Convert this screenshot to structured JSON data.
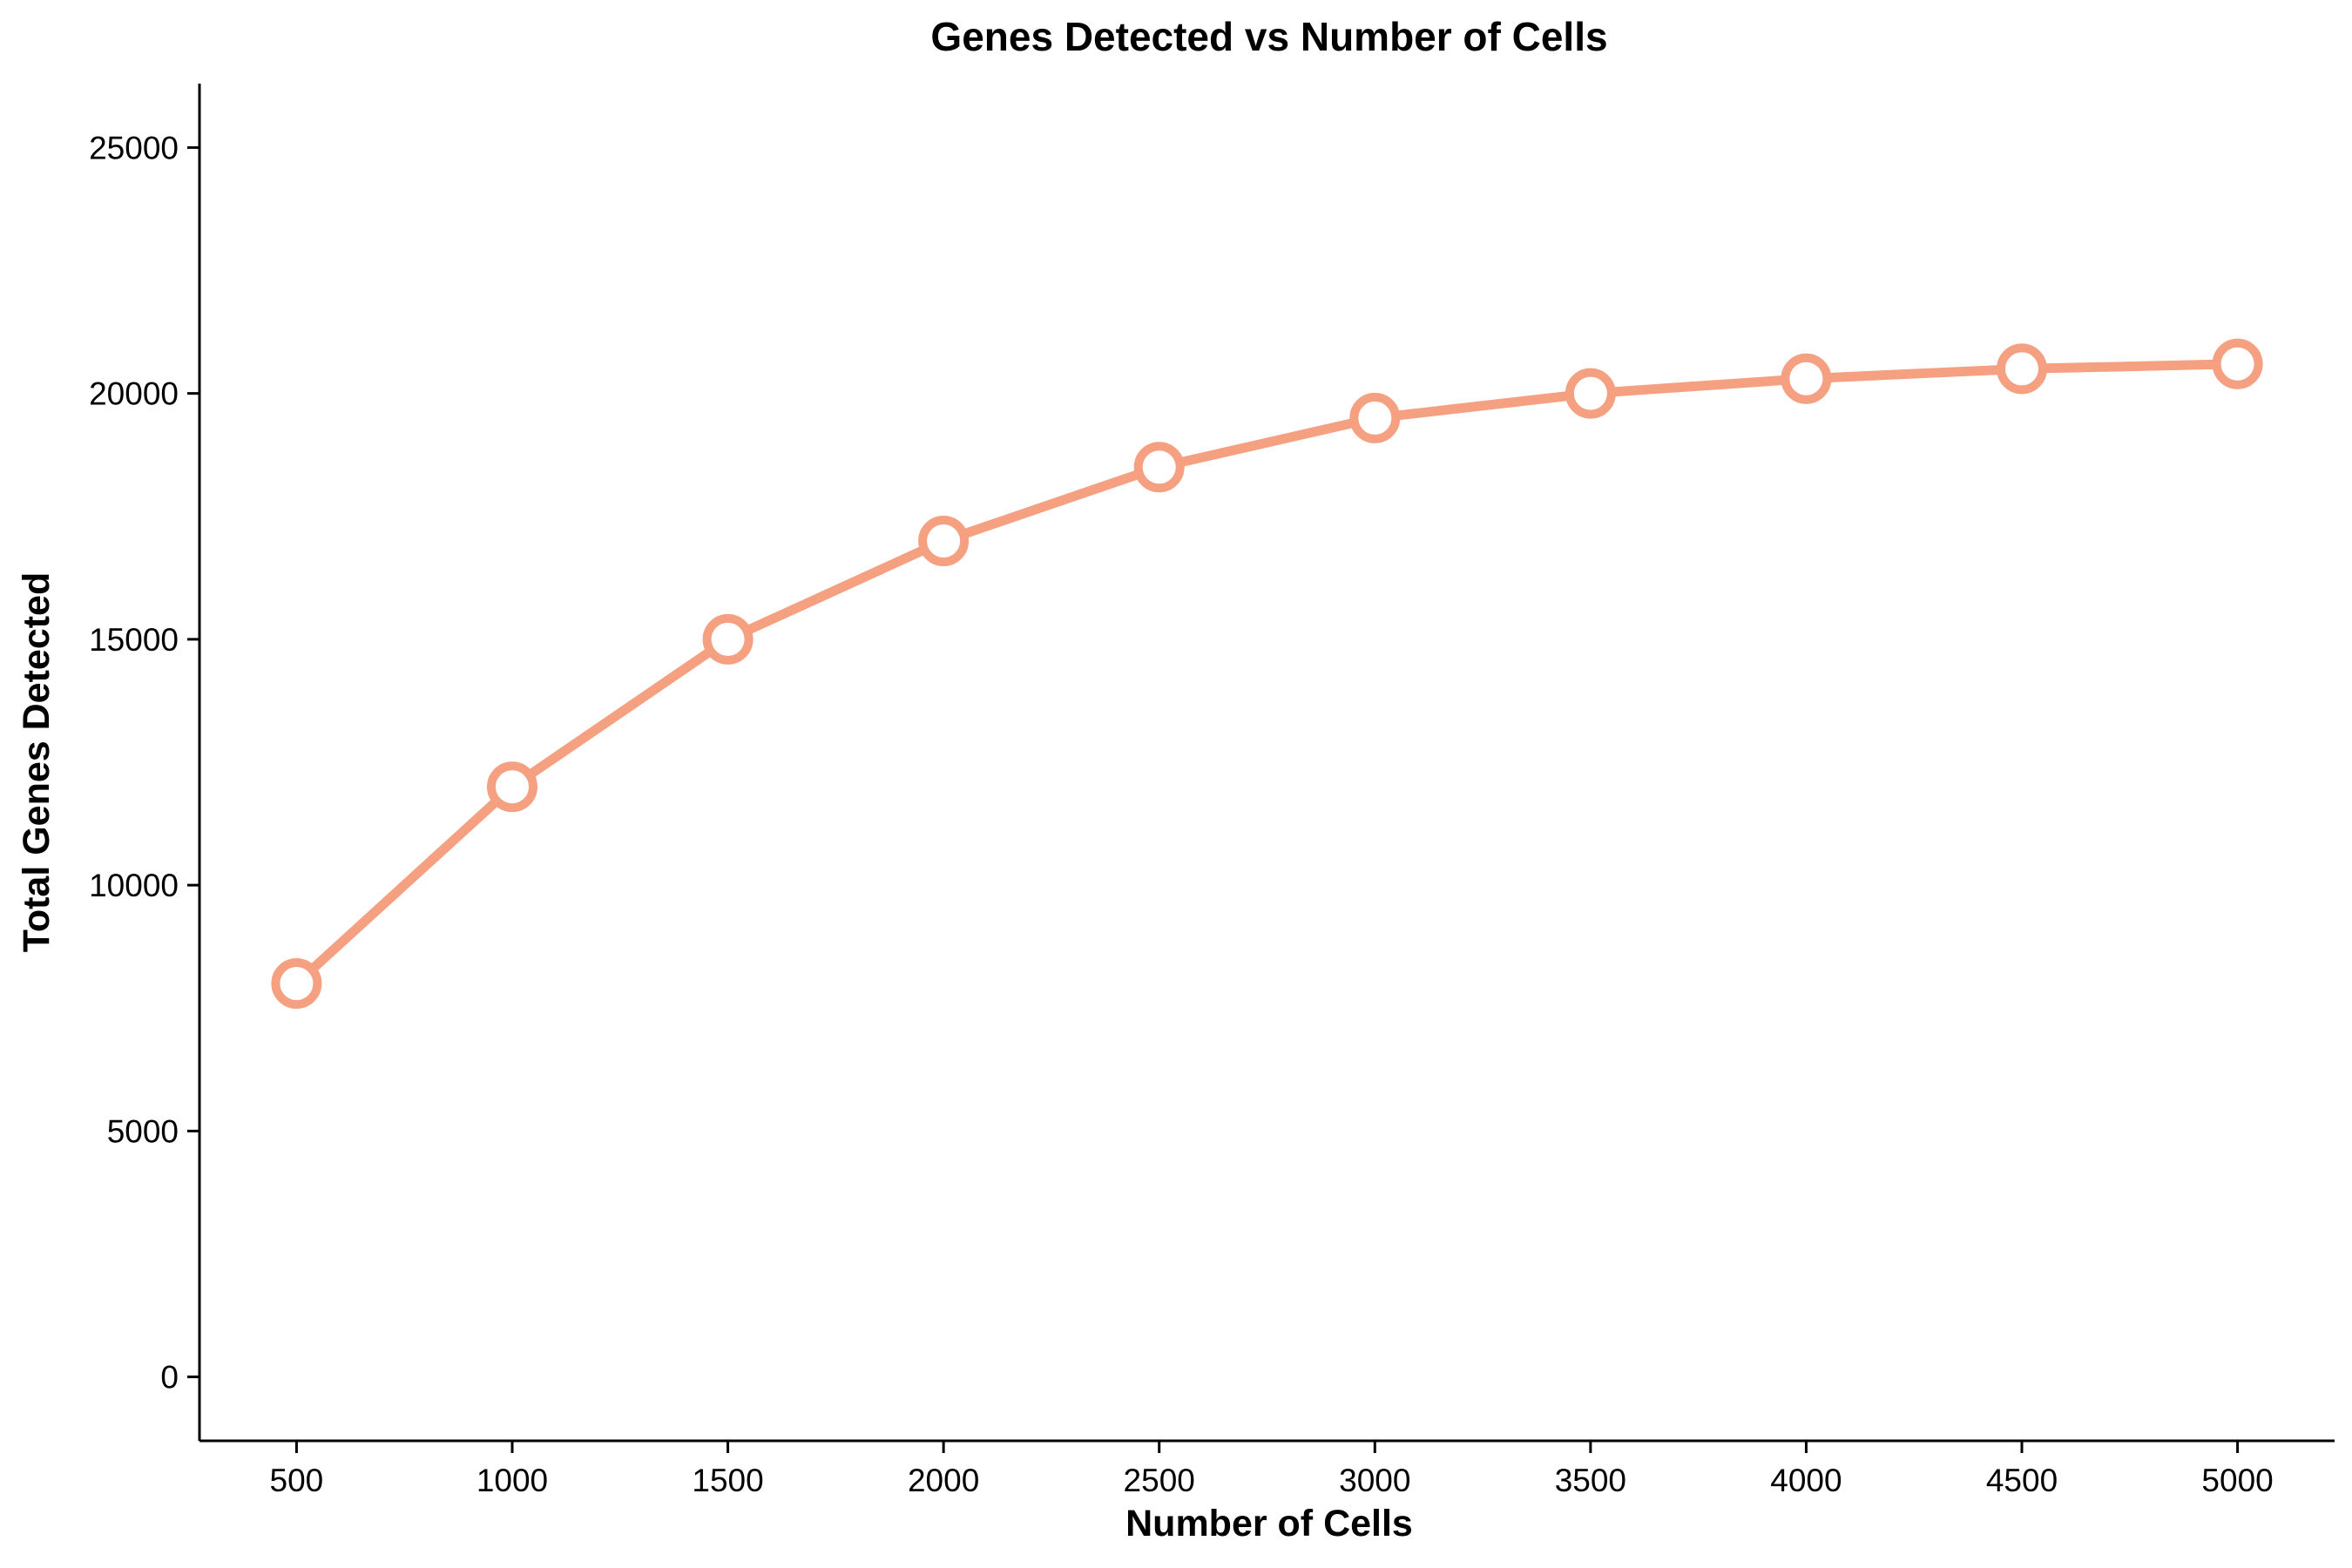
{
  "chart_data": {
    "type": "line",
    "title": "Genes Detected vs Number of Cells",
    "xlabel": "Number of Cells",
    "ylabel": "Total Genes Detected",
    "x": [
      500,
      1000,
      1500,
      2000,
      2500,
      3000,
      3500,
      4000,
      4500,
      5000
    ],
    "series": [
      {
        "values": [
          8000,
          12000,
          15000,
          17000,
          18500,
          19500,
          20000,
          20300,
          20500,
          20600
        ]
      }
    ],
    "xticks": [
      "500",
      "1000",
      "1500",
      "2000",
      "2500",
      "3000",
      "3500",
      "4000",
      "4500",
      "5000"
    ],
    "yticks": [
      "0",
      "5000",
      "10000",
      "15000",
      "20000",
      "25000"
    ],
    "xlim": [
      275,
      5225
    ],
    "ylim": [
      -1300,
      26300
    ],
    "grid": false,
    "legend": "none",
    "line_color": "#F4A081",
    "marker_fill": "#ffffff"
  }
}
